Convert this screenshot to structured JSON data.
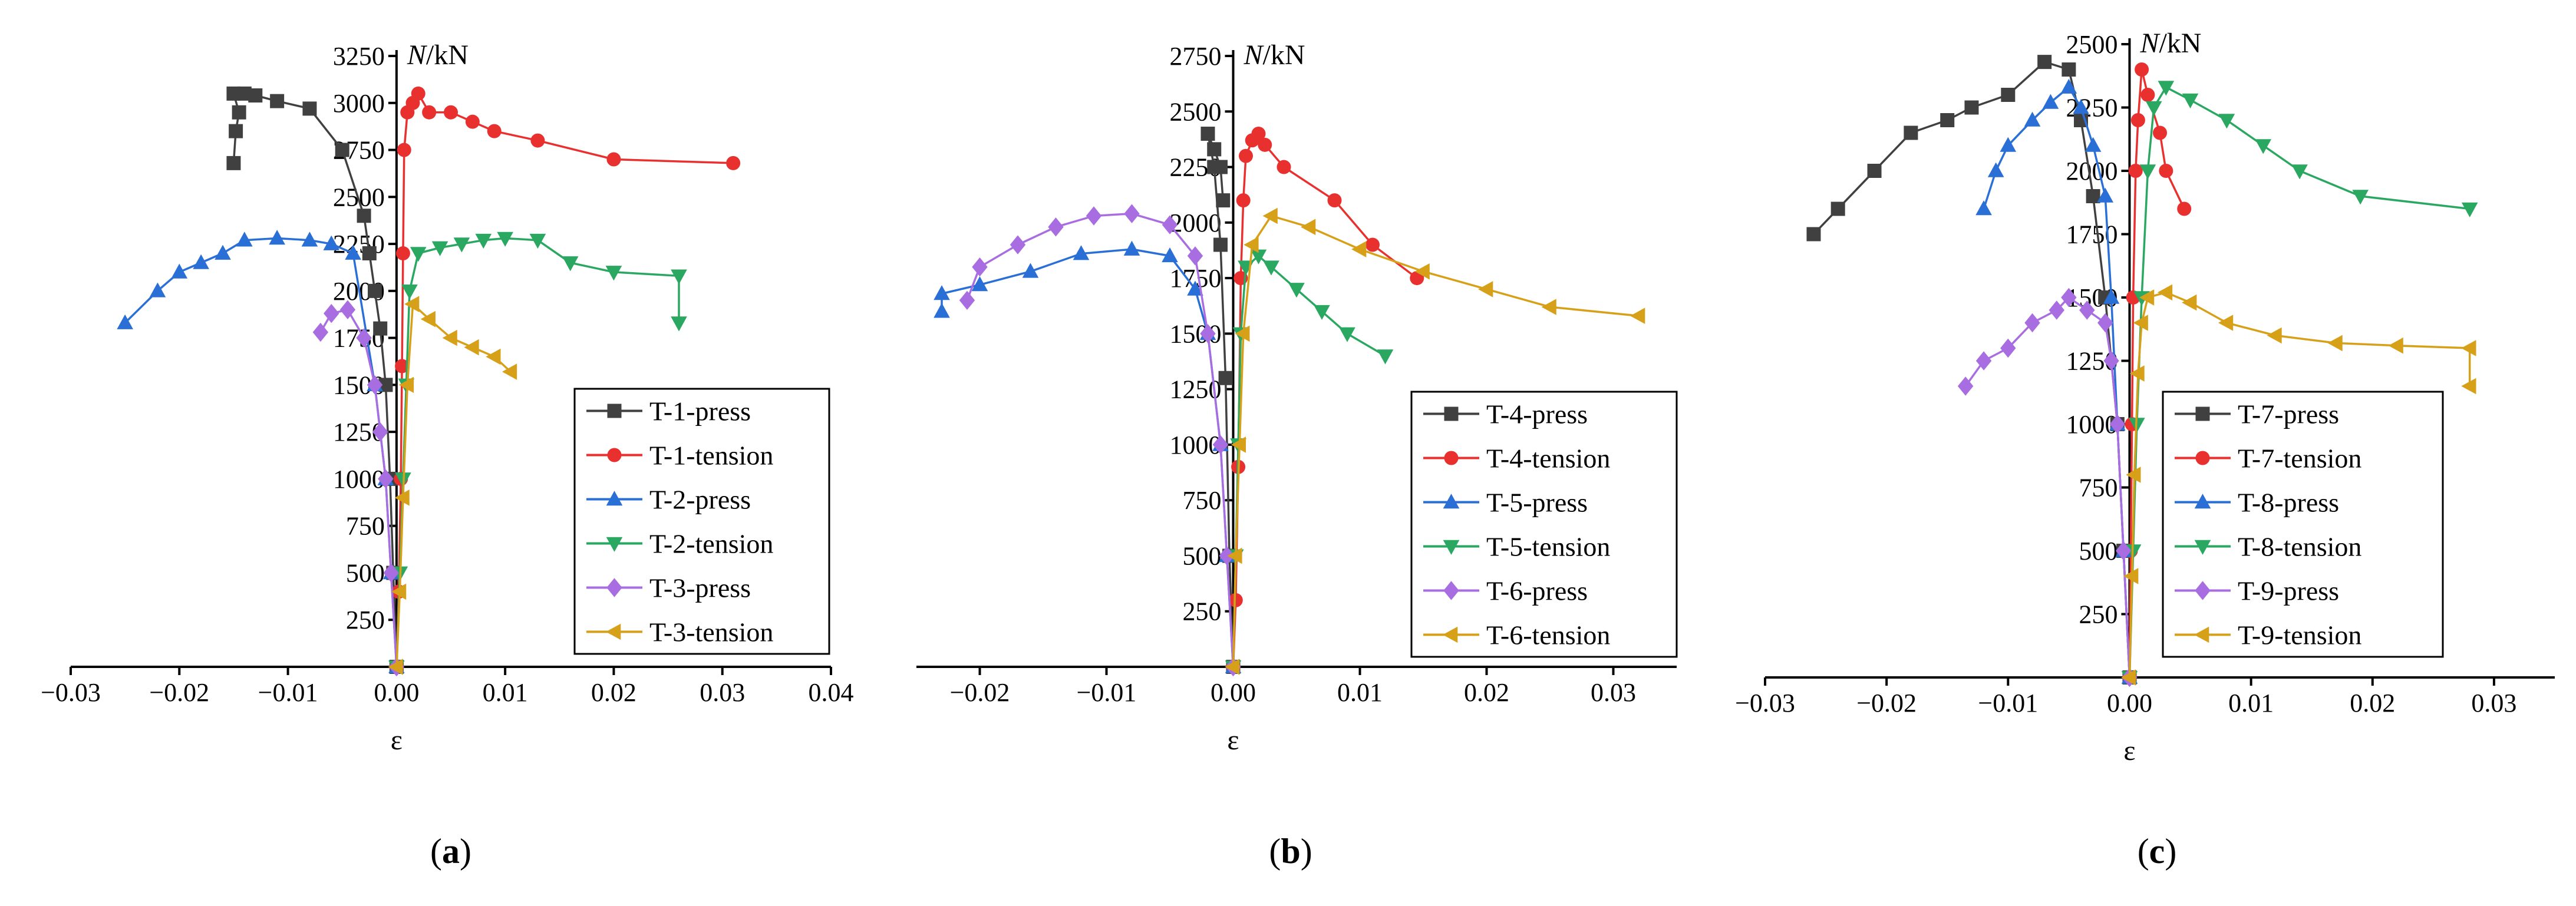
{
  "panels": [
    {
      "label_open": "(",
      "label_letter": "a",
      "label_close": ")",
      "chart_data": {
        "type": "line",
        "xlabel": "ε",
        "ylabel_italic": "N",
        "ylabel_unit": "/kN",
        "xlim": [
          -0.03,
          0.04
        ],
        "ylim": [
          0,
          3250
        ],
        "xticks": [
          -0.03,
          -0.02,
          -0.01,
          0.0,
          0.01,
          0.02,
          0.03,
          0.04
        ],
        "xtick_labels": [
          "−0.03",
          "−0.02",
          "−0.01",
          "0.00",
          "0.01",
          "0.02",
          "0.03",
          "0.04"
        ],
        "yticks": [
          250,
          500,
          750,
          1000,
          1250,
          1500,
          1750,
          2000,
          2250,
          2500,
          2750,
          3000,
          3250
        ],
        "ytick_labels": [
          "250",
          "500",
          "750",
          "1000",
          "1250",
          "1500",
          "1750",
          "2000",
          "2250",
          "2500",
          "2750",
          "3000",
          "3250"
        ],
        "legend_position": "bottom-right",
        "series": [
          {
            "name": "T-1-press",
            "color": "#404040",
            "marker": "square",
            "x": [
              0,
              -0.0003,
              -0.0006,
              -0.001,
              -0.0015,
              -0.002,
              -0.0025,
              -0.003,
              -0.005,
              -0.008,
              -0.011,
              -0.013,
              -0.014,
              -0.015,
              -0.0145,
              -0.0148,
              -0.015
            ],
            "y": [
              0,
              500,
              1000,
              1500,
              1800,
              2000,
              2200,
              2400,
              2750,
              2970,
              3010,
              3040,
              3050,
              3050,
              2950,
              2850,
              2680
            ]
          },
          {
            "name": "T-1-tension",
            "color": "#e8302f",
            "marker": "circle",
            "x": [
              0,
              0.0002,
              0.0004,
              0.0005,
              0.0006,
              0.0007,
              0.001,
              0.0015,
              0.002,
              0.003,
              0.005,
              0.007,
              0.009,
              0.013,
              0.02,
              0.031
            ],
            "y": [
              0,
              400,
              1000,
              1600,
              2200,
              2750,
              2950,
              3000,
              3050,
              2950,
              2950,
              2900,
              2850,
              2800,
              2700,
              2680
            ]
          },
          {
            "name": "T-2-press",
            "color": "#2a6fd6",
            "marker": "triangle-up",
            "x": [
              0,
              -0.0005,
              -0.001,
              -0.002,
              -0.004,
              -0.006,
              -0.008,
              -0.011,
              -0.014,
              -0.016,
              -0.018,
              -0.02,
              -0.022,
              -0.025
            ],
            "y": [
              0,
              500,
              1000,
              1500,
              2200,
              2250,
              2270,
              2280,
              2270,
              2200,
              2150,
              2100,
              2000,
              1830
            ]
          },
          {
            "name": "T-2-tension",
            "color": "#2aa760",
            "marker": "triangle-down",
            "x": [
              0,
              0.0003,
              0.0006,
              0.0009,
              0.0012,
              0.002,
              0.004,
              0.006,
              0.008,
              0.01,
              0.013,
              0.016,
              0.02,
              0.026,
              0.026
            ],
            "y": [
              0,
              500,
              1000,
              1500,
              2000,
              2200,
              2230,
              2250,
              2270,
              2280,
              2270,
              2150,
              2100,
              2080,
              1830
            ]
          },
          {
            "name": "T-3-press",
            "color": "#a86de0",
            "marker": "diamond",
            "x": [
              0,
              -0.0005,
              -0.001,
              -0.0015,
              -0.002,
              -0.003,
              -0.0045,
              -0.006,
              -0.007
            ],
            "y": [
              0,
              500,
              1000,
              1250,
              1500,
              1750,
              1900,
              1880,
              1780
            ]
          },
          {
            "name": "T-3-tension",
            "color": "#d6a019",
            "marker": "triangle-left",
            "x": [
              0,
              0.0003,
              0.0006,
              0.001,
              0.0015,
              0.003,
              0.005,
              0.007,
              0.009,
              0.0105
            ],
            "y": [
              0,
              400,
              900,
              1500,
              1930,
              1850,
              1750,
              1700,
              1650,
              1570
            ]
          }
        ],
        "legend_entries": [
          "T-1-press",
          "T-1-tension",
          "T-2-press",
          "T-2-tension",
          "T-3-press",
          "T-3-tension"
        ]
      }
    },
    {
      "label_open": "(",
      "label_letter": "b",
      "label_close": ")",
      "chart_data": {
        "type": "line",
        "xlabel": "ε",
        "ylabel_italic": "N",
        "ylabel_unit": "/kN",
        "xlim": [
          -0.025,
          0.035
        ],
        "ylim": [
          0,
          2750
        ],
        "xticks": [
          -0.02,
          -0.01,
          0.0,
          0.01,
          0.02,
          0.03
        ],
        "xtick_labels": [
          "−0.02",
          "−0.01",
          "0.00",
          "0.01",
          "0.02",
          "0.03"
        ],
        "yticks": [
          250,
          500,
          750,
          1000,
          1250,
          1500,
          1750,
          2000,
          2250,
          2500,
          2750
        ],
        "ytick_labels": [
          "250",
          "500",
          "750",
          "1000",
          "1250",
          "1500",
          "1750",
          "2000",
          "2250",
          "2500",
          "2750"
        ],
        "legend_position": "bottom-right",
        "series": [
          {
            "name": "T-4-press",
            "color": "#404040",
            "marker": "square",
            "x": [
              0,
              -0.0003,
              -0.0006,
              -0.001,
              -0.0015,
              -0.002,
              -0.0015,
              -0.001,
              -0.0008
            ],
            "y": [
              0,
              500,
              1300,
              1900,
              2250,
              2400,
              2330,
              2250,
              2100
            ]
          },
          {
            "name": "T-4-tension",
            "color": "#e8302f",
            "marker": "circle",
            "x": [
              0,
              0.0002,
              0.0004,
              0.0006,
              0.0008,
              0.001,
              0.0015,
              0.002,
              0.0025,
              0.004,
              0.008,
              0.011,
              0.0145
            ],
            "y": [
              0,
              300,
              900,
              1750,
              2100,
              2300,
              2370,
              2400,
              2350,
              2250,
              2100,
              1900,
              1750
            ]
          },
          {
            "name": "T-5-press",
            "color": "#2a6fd6",
            "marker": "triangle-up",
            "x": [
              0,
              -0.0005,
              -0.001,
              -0.002,
              -0.003,
              -0.005,
              -0.008,
              -0.012,
              -0.016,
              -0.02,
              -0.023,
              -0.023
            ],
            "y": [
              0,
              500,
              1000,
              1500,
              1700,
              1850,
              1880,
              1860,
              1780,
              1720,
              1680,
              1600
            ]
          },
          {
            "name": "T-5-tension",
            "color": "#2aa760",
            "marker": "triangle-down",
            "x": [
              0,
              0.0002,
              0.0004,
              0.0006,
              0.001,
              0.002,
              0.003,
              0.005,
              0.007,
              0.009,
              0.012
            ],
            "y": [
              0,
              500,
              1000,
              1500,
              1800,
              1850,
              1800,
              1700,
              1600,
              1500,
              1400
            ]
          },
          {
            "name": "T-6-press",
            "color": "#a86de0",
            "marker": "diamond",
            "x": [
              0,
              -0.0005,
              -0.001,
              -0.002,
              -0.003,
              -0.005,
              -0.008,
              -0.011,
              -0.014,
              -0.017,
              -0.02,
              -0.021
            ],
            "y": [
              0,
              500,
              1000,
              1500,
              1850,
              1990,
              2040,
              2030,
              1980,
              1900,
              1800,
              1650
            ]
          },
          {
            "name": "T-6-tension",
            "color": "#d6a019",
            "marker": "triangle-left",
            "x": [
              0,
              0.0002,
              0.0005,
              0.0008,
              0.0015,
              0.003,
              0.006,
              0.01,
              0.015,
              0.02,
              0.025,
              0.032
            ],
            "y": [
              0,
              500,
              1000,
              1500,
              1900,
              2030,
              1980,
              1880,
              1780,
              1700,
              1620,
              1580
            ]
          }
        ],
        "legend_entries": [
          "T-4-press",
          "T-4-tension",
          "T-5-press",
          "T-5-tension",
          "T-6-press",
          "T-6-tension"
        ]
      }
    },
    {
      "label_open": "(",
      "label_letter": "c",
      "label_close": ")",
      "chart_data": {
        "type": "line",
        "xlabel": "ε",
        "ylabel_italic": "N",
        "ylabel_unit": "/kN",
        "xlim": [
          -0.03,
          0.035
        ],
        "ylim": [
          0,
          2500
        ],
        "xticks": [
          -0.03,
          -0.02,
          -0.01,
          0.0,
          0.01,
          0.02,
          0.03
        ],
        "xtick_labels": [
          "−0.03",
          "−0.02",
          "−0.01",
          "0.00",
          "0.01",
          "0.02",
          "0.03"
        ],
        "yticks": [
          250,
          500,
          750,
          1000,
          1250,
          1500,
          1750,
          2000,
          2250,
          2500
        ],
        "ytick_labels": [
          "250",
          "500",
          "750",
          "1000",
          "1250",
          "1500",
          "1750",
          "2000",
          "2250",
          "2500"
        ],
        "legend_position": "bottom-right",
        "series": [
          {
            "name": "T-7-press",
            "color": "#404040",
            "marker": "square",
            "x": [
              0,
              -0.0005,
              -0.001,
              -0.002,
              -0.003,
              -0.004,
              -0.005,
              -0.007,
              -0.01,
              -0.013,
              -0.015,
              -0.018,
              -0.021,
              -0.024,
              -0.026
            ],
            "y": [
              0,
              500,
              1000,
              1500,
              1900,
              2200,
              2400,
              2430,
              2300,
              2250,
              2200,
              2150,
              2000,
              1850,
              1750
            ]
          },
          {
            "name": "T-7-tension",
            "color": "#e8302f",
            "marker": "circle",
            "x": [
              0,
              0.0001,
              0.0002,
              0.0003,
              0.0005,
              0.0007,
              0.001,
              0.0015,
              0.0025,
              0.003,
              0.0045
            ],
            "y": [
              0,
              500,
              1000,
              1500,
              2000,
              2200,
              2400,
              2300,
              2150,
              2000,
              1850
            ]
          },
          {
            "name": "T-8-press",
            "color": "#2a6fd6",
            "marker": "triangle-up",
            "x": [
              0,
              -0.0005,
              -0.001,
              -0.0015,
              -0.002,
              -0.003,
              -0.004,
              -0.005,
              -0.0065,
              -0.008,
              -0.01,
              -0.011,
              -0.012
            ],
            "y": [
              0,
              500,
              1000,
              1500,
              1900,
              2100,
              2250,
              2330,
              2270,
              2200,
              2100,
              2000,
              1850
            ]
          },
          {
            "name": "T-8-tension",
            "color": "#2aa760",
            "marker": "triangle-down",
            "x": [
              0,
              0.0003,
              0.0006,
              0.001,
              0.0015,
              0.002,
              0.003,
              0.005,
              0.008,
              0.011,
              0.014,
              0.019,
              0.028
            ],
            "y": [
              0,
              500,
              1000,
              1500,
              2000,
              2250,
              2330,
              2280,
              2200,
              2100,
              2000,
              1900,
              1850
            ]
          },
          {
            "name": "T-9-press",
            "color": "#a86de0",
            "marker": "diamond",
            "x": [
              0,
              -0.0005,
              -0.001,
              -0.0015,
              -0.002,
              -0.0035,
              -0.005,
              -0.006,
              -0.008,
              -0.01,
              -0.012,
              -0.0135
            ],
            "y": [
              0,
              500,
              1000,
              1250,
              1400,
              1450,
              1500,
              1450,
              1400,
              1300,
              1250,
              1150
            ]
          },
          {
            "name": "T-9-tension",
            "color": "#d6a019",
            "marker": "triangle-left",
            "x": [
              0,
              0.0002,
              0.0004,
              0.0007,
              0.001,
              0.0015,
              0.003,
              0.005,
              0.008,
              0.012,
              0.017,
              0.022,
              0.028,
              0.028
            ],
            "y": [
              0,
              400,
              800,
              1200,
              1400,
              1500,
              1520,
              1480,
              1400,
              1350,
              1320,
              1310,
              1300,
              1150
            ]
          }
        ],
        "legend_entries": [
          "T-7-press",
          "T-7-tension",
          "T-8-press",
          "T-8-tension",
          "T-9-press",
          "T-9-tension"
        ]
      }
    }
  ]
}
